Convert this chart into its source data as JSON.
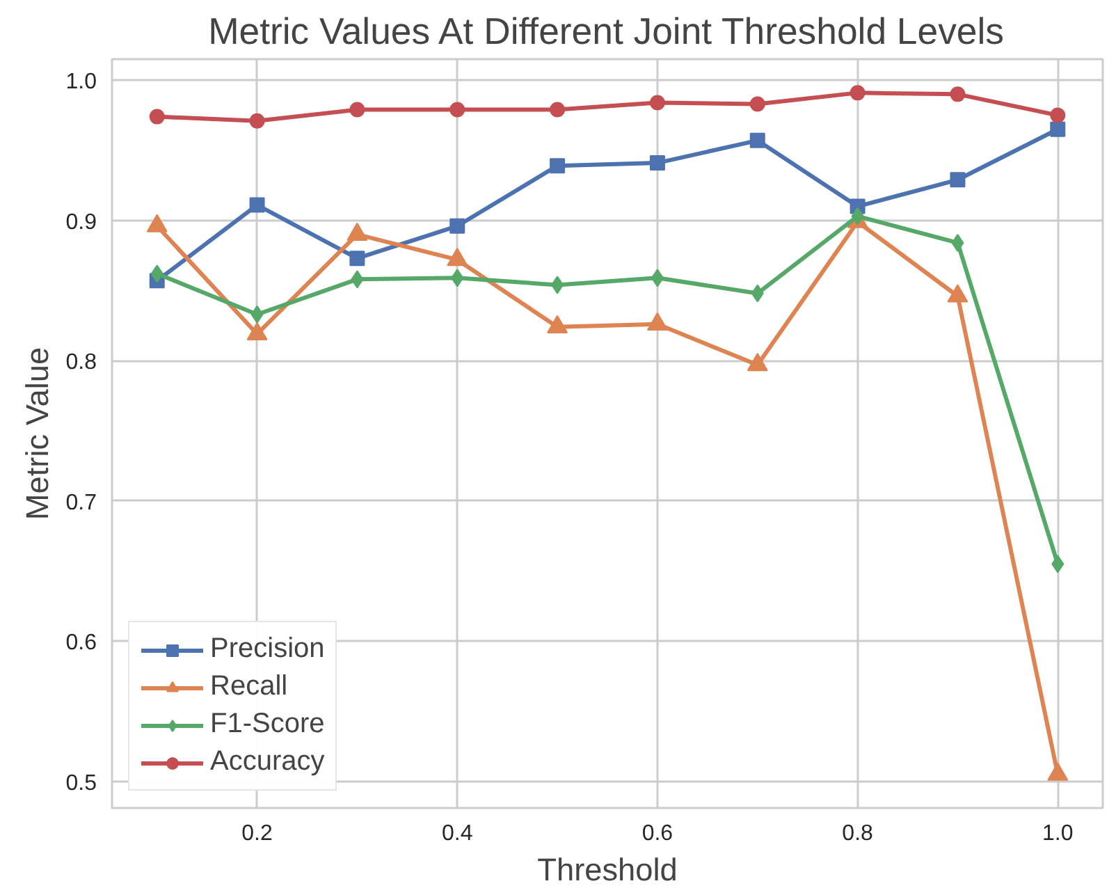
{
  "chart_data": {
    "type": "line",
    "title": "Metric Values At Different Joint Threshold Levels",
    "xlabel": "Threshold",
    "ylabel": "Metric Value",
    "x": [
      0.1,
      0.2,
      0.3,
      0.4,
      0.5,
      0.6,
      0.7,
      0.8,
      0.9,
      1.0
    ],
    "series": [
      {
        "name": "Precision",
        "color": "#4c72b0",
        "marker": "square",
        "values": [
          0.857,
          0.911,
          0.873,
          0.896,
          0.939,
          0.941,
          0.957,
          0.91,
          0.929,
          0.965
        ]
      },
      {
        "name": "Recall",
        "color": "#dd8452",
        "marker": "triangle",
        "values": [
          0.896,
          0.819,
          0.89,
          0.872,
          0.824,
          0.826,
          0.797,
          0.899,
          0.846,
          0.505
        ]
      },
      {
        "name": "F1-Score",
        "color": "#55a868",
        "marker": "diamond",
        "values": [
          0.862,
          0.833,
          0.858,
          0.859,
          0.854,
          0.859,
          0.848,
          0.903,
          0.884,
          0.655
        ]
      },
      {
        "name": "Accuracy",
        "color": "#c44e52",
        "marker": "circle",
        "values": [
          0.974,
          0.971,
          0.979,
          0.979,
          0.979,
          0.984,
          0.983,
          0.991,
          0.99,
          0.975
        ]
      }
    ],
    "xlim": [
      0.055,
      1.045
    ],
    "ylim": [
      0.481,
      1.015
    ],
    "xticks": [
      {
        "value": 0.2,
        "label": "0.2"
      },
      {
        "value": 0.4,
        "label": "0.4"
      },
      {
        "value": 0.6,
        "label": "0.6"
      },
      {
        "value": 0.8,
        "label": "0.8"
      },
      {
        "value": 1.0,
        "label": "1.0"
      }
    ],
    "yticks": [
      {
        "value": 0.5,
        "label": "0.5"
      },
      {
        "value": 0.6,
        "label": "0.6"
      },
      {
        "value": 0.7,
        "label": "0.7"
      },
      {
        "value": 0.8,
        "label": "0.8"
      },
      {
        "value": 0.9,
        "label": "0.9"
      },
      {
        "value": 1.0,
        "label": "1.0"
      }
    ],
    "grid": true,
    "legend": "bottom left",
    "line_style": "solid"
  }
}
